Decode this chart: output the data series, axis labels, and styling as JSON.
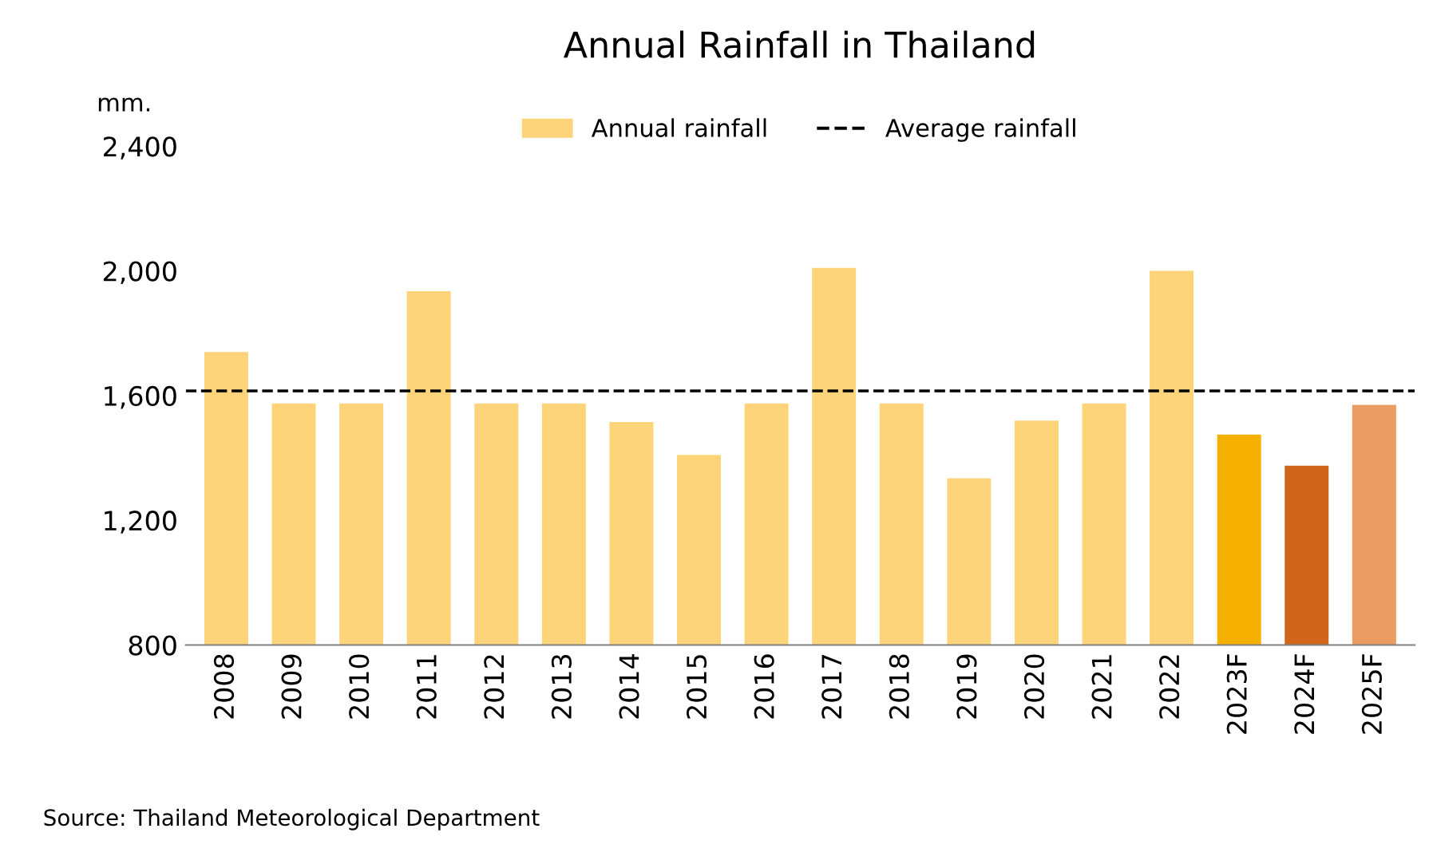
{
  "chart_data": {
    "type": "bar",
    "title": "Annual Rainfall in Thailand",
    "ylabel": "mm.",
    "categories": [
      "2008",
      "2009",
      "2010",
      "2011",
      "2012",
      "2013",
      "2014",
      "2015",
      "2016",
      "2017",
      "2018",
      "2019",
      "2020",
      "2021",
      "2022",
      "2023F",
      "2024F",
      "2025F"
    ],
    "series": [
      {
        "name": "Annual rainfall",
        "color": "#fdd47a",
        "colors": [
          "#fdd47a",
          "#fdd47a",
          "#fdd47a",
          "#fdd47a",
          "#fdd47a",
          "#fdd47a",
          "#fdd47a",
          "#fdd47a",
          "#fdd47a",
          "#fdd47a",
          "#fdd47a",
          "#fdd47a",
          "#fdd47a",
          "#fdd47a",
          "#fdd47a",
          "#f5b000",
          "#d0661a",
          "#eb9c62"
        ],
        "values": [
          1740,
          1575,
          1575,
          1935,
          1575,
          1575,
          1515,
          1410,
          1575,
          2010,
          1575,
          1335,
          1520,
          1575,
          2000,
          1475,
          1375,
          1570
        ]
      }
    ],
    "ref_lines": [
      {
        "axis": "y",
        "value": 1615,
        "label": "Average rainfall",
        "color": "#000000",
        "line_style": "dashed"
      }
    ],
    "ylim": [
      800,
      2400
    ],
    "yticks": [
      {
        "value": 800,
        "label": "800"
      },
      {
        "value": 1200,
        "label": "1,200"
      },
      {
        "value": 1600,
        "label": "1,600"
      },
      {
        "value": 2000,
        "label": "2,000"
      },
      {
        "value": 2400,
        "label": "2,400"
      }
    ],
    "grid": false,
    "legend": "top",
    "annotations": [
      "Source: Thailand Meteorological Department"
    ]
  }
}
